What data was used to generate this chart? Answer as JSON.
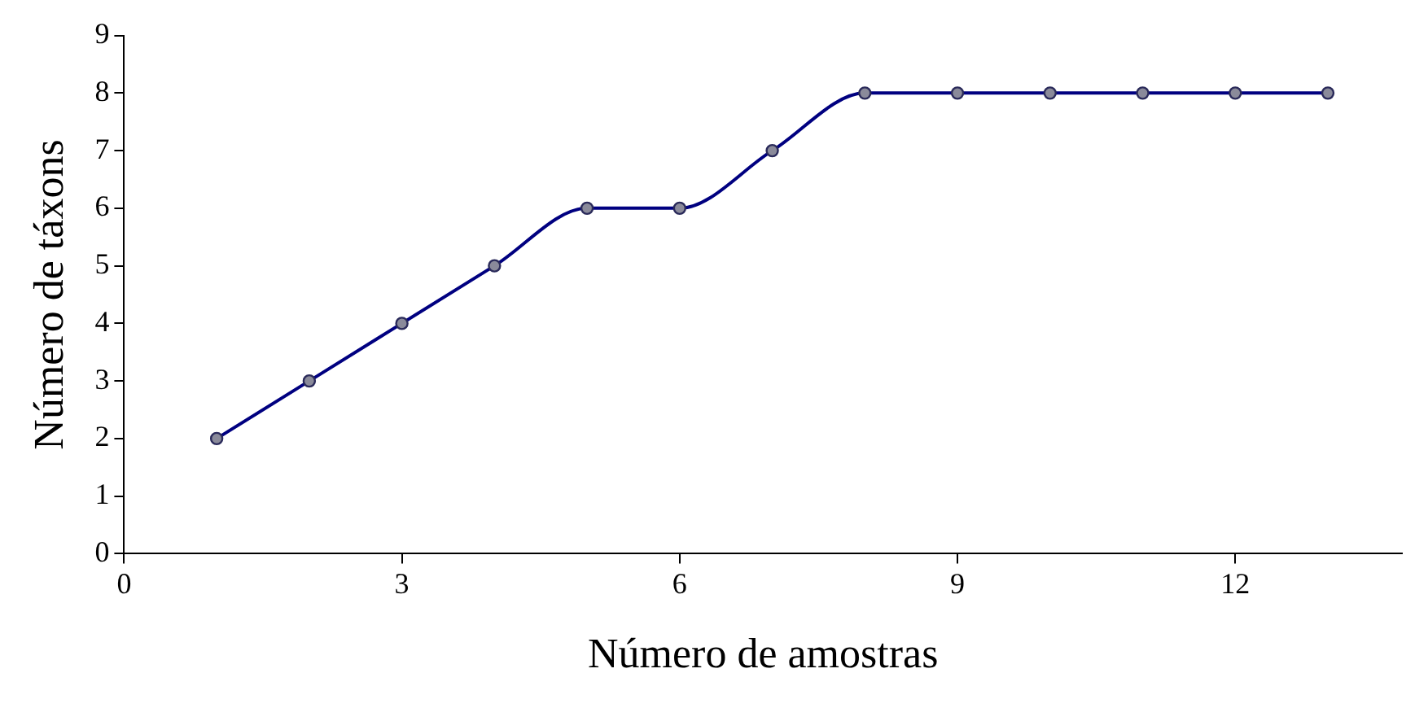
{
  "chart_data": {
    "type": "line",
    "xlabel": "Número de amostras",
    "ylabel": "Número de táxons",
    "x": [
      1,
      2,
      3,
      4,
      5,
      6,
      7,
      8,
      9,
      10,
      11,
      12,
      13
    ],
    "series": [
      {
        "color": "#000080",
        "values": [
          2,
          3,
          4,
          5,
          6,
          6,
          7,
          8,
          8,
          8,
          8,
          8,
          8
        ]
      }
    ],
    "xlim": [
      0,
      13.8
    ],
    "xticks": [
      0,
      3,
      6,
      9,
      12
    ],
    "ylim": [
      0,
      9
    ],
    "yticks": [
      0,
      1,
      2,
      3,
      4,
      5,
      6,
      7,
      8,
      9
    ],
    "grid": false,
    "legend": false,
    "marker": "circle",
    "line_style": "solid"
  }
}
